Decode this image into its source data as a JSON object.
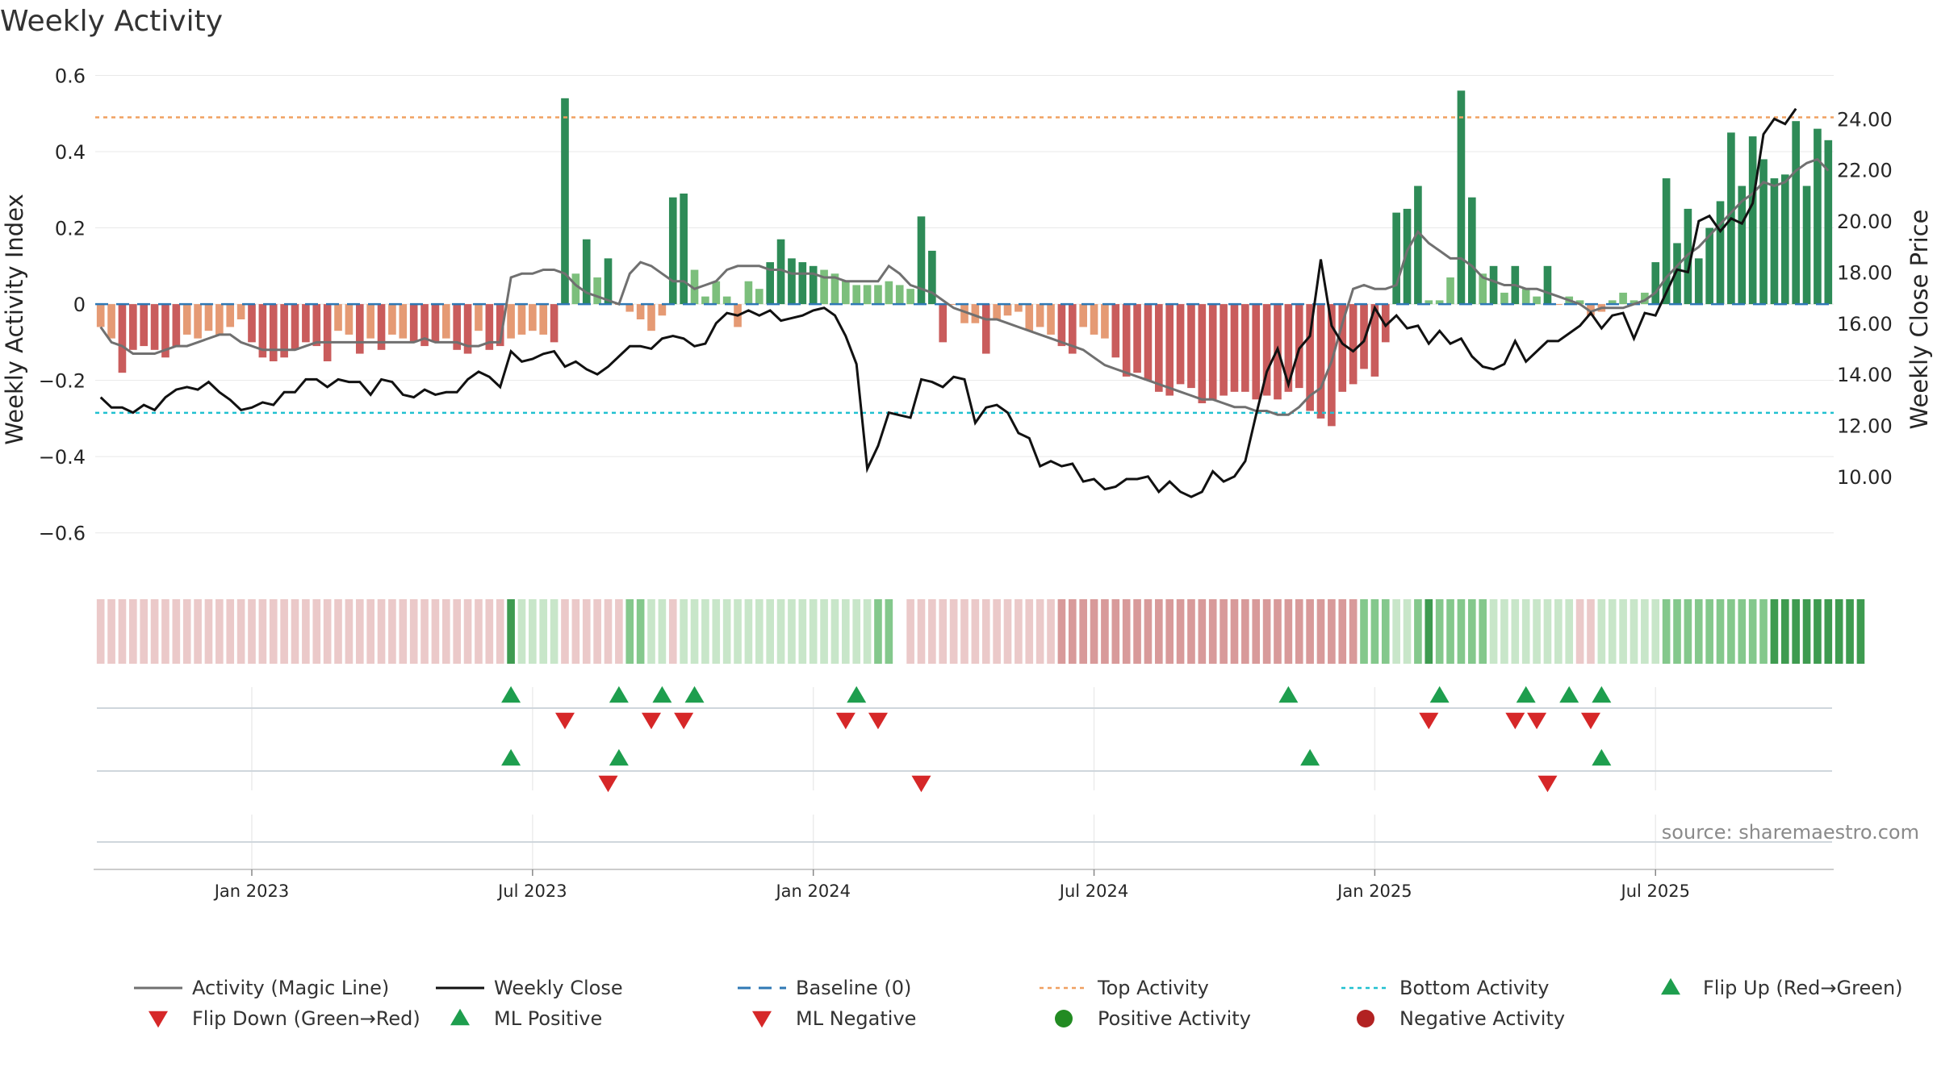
{
  "chart_data": {
    "type": "bar",
    "title": "Weekly Activity",
    "ylabel": "Weekly Activity Index",
    "y2label": "Weekly Close Price",
    "ylim": [
      -0.7,
      0.62
    ],
    "y2lim": [
      6.3,
      26.0
    ],
    "yticks": [
      "0.6",
      "0.4",
      "0.2",
      "0",
      "−0.2",
      "−0.4",
      "−0.6"
    ],
    "y2ticks": [
      "24.00",
      "22.00",
      "20.00",
      "18.00",
      "16.00",
      "14.00",
      "12.00",
      "10.00"
    ],
    "x_tick_labels": [
      "Jan 2023",
      "Jul 2023",
      "Jan 2024",
      "Jul 2024",
      "Jan 2025",
      "Jul 2025"
    ],
    "x_tick_weeks": [
      14.5,
      40.5,
      66.5,
      92.5,
      118.5,
      144.5
    ],
    "top_activity": 0.49,
    "bottom_activity": -0.285,
    "colors": {
      "pos_strong": "#2e8b57",
      "pos_weak": "#7cbf7c",
      "neg_strong": "#c95c5c",
      "neg_weak": "#e59a74",
      "magic_line": "#707070",
      "close_line": "#111111",
      "baseline": "#2f78b5",
      "top_line": "#f0a060",
      "bottom_line": "#20c0d0",
      "marker_up": "#1e9e4e",
      "marker_down": "#d62728",
      "pos_dot": "#228b22",
      "neg_dot": "#b22222"
    },
    "series": [
      {
        "name": "Activity",
        "values": [
          -0.06,
          -0.09,
          -0.18,
          -0.12,
          -0.11,
          -0.12,
          -0.14,
          -0.11,
          -0.08,
          -0.09,
          -0.07,
          -0.08,
          -0.06,
          -0.04,
          -0.1,
          -0.14,
          -0.15,
          -0.14,
          -0.12,
          -0.1,
          -0.11,
          -0.15,
          -0.07,
          -0.08,
          -0.13,
          -0.09,
          -0.12,
          -0.08,
          -0.09,
          -0.1,
          -0.11,
          -0.1,
          -0.09,
          -0.12,
          -0.13,
          -0.07,
          -0.12,
          -0.11,
          -0.09,
          -0.08,
          -0.07,
          -0.08,
          -0.1,
          0.54,
          0.08,
          0.17,
          0.07,
          0.12,
          0,
          -0.02,
          -0.04,
          -0.07,
          -0.03,
          0.28,
          0.29,
          0.09,
          0.02,
          0.06,
          0.02,
          -0.06,
          0.06,
          0.04,
          0.11,
          0.17,
          0.12,
          0.11,
          0.1,
          0.09,
          0.08,
          0.06,
          0.05,
          0.05,
          0.05,
          0.06,
          0.05,
          0.04,
          0.23,
          0.14,
          -0.1,
          0,
          -0.05,
          -0.05,
          -0.13,
          -0.04,
          -0.03,
          -0.02,
          -0.07,
          -0.06,
          -0.08,
          -0.11,
          -0.13,
          -0.06,
          -0.08,
          -0.09,
          -0.14,
          -0.19,
          -0.18,
          -0.2,
          -0.23,
          -0.24,
          -0.21,
          -0.22,
          -0.26,
          -0.25,
          -0.24,
          -0.23,
          -0.23,
          -0.25,
          -0.24,
          -0.25,
          -0.23,
          -0.22,
          -0.28,
          -0.3,
          -0.32,
          -0.23,
          -0.21,
          -0.17,
          -0.19,
          -0.1,
          0.24,
          0.25,
          0.31,
          0.01,
          0.01,
          0.07,
          0.56,
          0.28,
          0.08,
          0.1,
          0.03,
          0.1,
          0.04,
          0.02,
          0.1,
          0,
          0.02,
          0.01,
          -0.03,
          -0.02,
          0.01,
          0.03,
          0.01,
          0.03,
          0.11,
          0.33,
          0.16,
          0.25,
          0.12,
          0.2,
          0.27,
          0.45,
          0.31,
          0.44,
          0.38,
          0.33,
          0.34,
          0.48,
          0.31,
          0.46,
          0.43
        ]
      },
      {
        "name": "Activity (Magic Line)",
        "values": [
          -0.06,
          -0.1,
          -0.11,
          -0.13,
          -0.13,
          -0.13,
          -0.12,
          -0.11,
          -0.11,
          -0.1,
          -0.09,
          -0.08,
          -0.08,
          -0.1,
          -0.11,
          -0.12,
          -0.12,
          -0.12,
          -0.12,
          -0.11,
          -0.1,
          -0.1,
          -0.1,
          -0.1,
          -0.1,
          -0.1,
          -0.1,
          -0.1,
          -0.1,
          -0.1,
          -0.09,
          -0.1,
          -0.1,
          -0.1,
          -0.11,
          -0.11,
          -0.1,
          -0.1,
          0.07,
          0.08,
          0.08,
          0.09,
          0.09,
          0.08,
          0.05,
          0.03,
          0.02,
          0.01,
          0,
          0.08,
          0.11,
          0.1,
          0.08,
          0.06,
          0.06,
          0.04,
          0.05,
          0.06,
          0.09,
          0.1,
          0.1,
          0.1,
          0.09,
          0.09,
          0.08,
          0.08,
          0.08,
          0.07,
          0.07,
          0.06,
          0.06,
          0.06,
          0.06,
          0.1,
          0.08,
          0.05,
          0.04,
          0.03,
          0.01,
          -0.01,
          -0.02,
          -0.03,
          -0.04,
          -0.04,
          -0.05,
          -0.06,
          -0.07,
          -0.08,
          -0.09,
          -0.1,
          -0.11,
          -0.12,
          -0.14,
          -0.16,
          -0.17,
          -0.18,
          -0.19,
          -0.2,
          -0.21,
          -0.22,
          -0.23,
          -0.24,
          -0.25,
          -0.25,
          -0.26,
          -0.27,
          -0.27,
          -0.28,
          -0.28,
          -0.29,
          -0.29,
          -0.27,
          -0.24,
          -0.22,
          -0.15,
          -0.05,
          0.04,
          0.05,
          0.04,
          0.04,
          0.05,
          0.14,
          0.19,
          0.16,
          0.14,
          0.12,
          0.12,
          0.1,
          0.07,
          0.06,
          0.05,
          0.05,
          0.04,
          0.04,
          0.03,
          0.02,
          0.01,
          0,
          -0.02,
          -0.01,
          -0.01,
          -0.01,
          0,
          0.01,
          0.03,
          0.07,
          0.1,
          0.13,
          0.15,
          0.18,
          0.21,
          0.24,
          0.27,
          0.29,
          0.32,
          0.31,
          0.32,
          0.35,
          0.37,
          0.38,
          0.35
        ]
      },
      {
        "name": "Weekly Close",
        "values": [
          13.1,
          12.7,
          12.7,
          12.5,
          12.8,
          12.6,
          13.1,
          13.4,
          13.5,
          13.4,
          13.7,
          13.3,
          13.0,
          12.6,
          12.7,
          12.9,
          12.8,
          13.3,
          13.3,
          13.8,
          13.8,
          13.5,
          13.8,
          13.7,
          13.7,
          13.2,
          13.8,
          13.7,
          13.2,
          13.1,
          13.4,
          13.2,
          13.3,
          13.3,
          13.8,
          14.1,
          13.9,
          13.5,
          14.9,
          14.5,
          14.6,
          14.8,
          14.9,
          14.3,
          14.5,
          14.2,
          14.0,
          14.3,
          14.7,
          15.1,
          15.1,
          15.0,
          15.4,
          15.5,
          15.4,
          15.1,
          15.2,
          16.0,
          16.4,
          16.3,
          16.5,
          16.3,
          16.5,
          16.1,
          16.2,
          16.3,
          16.5,
          16.6,
          16.3,
          15.5,
          14.4,
          10.3,
          11.2,
          12.5,
          12.4,
          12.3,
          13.8,
          13.7,
          13.5,
          13.9,
          13.8,
          12.1,
          12.7,
          12.8,
          12.5,
          11.7,
          11.5,
          10.4,
          10.6,
          10.4,
          10.5,
          9.8,
          9.9,
          9.5,
          9.6,
          9.9,
          9.9,
          10.0,
          9.4,
          9.8,
          9.4,
          9.2,
          9.4,
          10.2,
          9.8,
          10.0,
          10.6,
          12.4,
          14.1,
          15.0,
          13.6,
          15.0,
          15.5,
          18.5,
          15.9,
          15.2,
          14.9,
          15.3,
          16.6,
          15.9,
          16.3,
          15.8,
          15.9,
          15.2,
          15.7,
          15.2,
          15.4,
          14.7,
          14.3,
          14.2,
          14.4,
          15.3,
          14.5,
          14.9,
          15.3,
          15.3,
          15.6,
          15.9,
          16.4,
          15.8,
          16.3,
          16.4,
          15.4,
          16.4,
          16.3,
          17.2,
          18.1,
          18.0,
          20.0,
          20.2,
          19.6,
          20.1,
          19.9,
          20.7,
          23.4,
          24.0,
          23.8,
          24.4
        ]
      }
    ],
    "heat_strip_levels": [
      -1,
      -1,
      -1,
      -1,
      -1,
      -1,
      -1,
      -1,
      -1,
      -1,
      -1,
      -1,
      -1,
      -1,
      -1,
      -1,
      -1,
      -1,
      -1,
      -1,
      -1,
      -1,
      -1,
      -1,
      -1,
      -1,
      -1,
      -1,
      -1,
      -1,
      -1,
      -1,
      -1,
      -1,
      -1,
      -1,
      -1,
      -1,
      3,
      1,
      1,
      1,
      1,
      -1,
      -1,
      -1,
      -1,
      -1,
      -1,
      2,
      2,
      1,
      1,
      -1,
      1,
      1,
      1,
      1,
      1,
      1,
      1,
      1,
      1,
      1,
      1,
      1,
      1,
      1,
      1,
      1,
      1,
      1,
      2,
      2,
      0,
      -1,
      -1,
      -1,
      -1,
      -1,
      -1,
      -1,
      -1,
      -1,
      -1,
      -1,
      -1,
      -1,
      -1,
      -2,
      -2,
      -2,
      -2,
      -2,
      -2,
      -2,
      -2,
      -2,
      -2,
      -2,
      -2,
      -2,
      -2,
      -2,
      -2,
      -2,
      -2,
      -2,
      -2,
      -2,
      -2,
      -2,
      -2,
      -2,
      -2,
      -2,
      -2,
      2,
      2,
      2,
      1,
      1,
      2,
      3,
      2,
      2,
      2,
      2,
      2,
      1,
      1,
      1,
      1,
      1,
      1,
      1,
      1,
      -1,
      -1,
      1,
      1,
      1,
      1,
      1,
      1,
      2,
      2,
      2,
      2,
      2,
      2,
      2,
      2,
      2,
      2,
      3,
      3,
      3,
      3,
      3,
      3,
      3,
      3,
      3
    ],
    "flip_up_weeks": [
      38,
      48,
      52,
      55,
      70,
      110,
      124,
      132,
      136,
      139
    ],
    "flip_down_weeks": [
      43,
      51,
      54,
      69,
      72,
      123,
      131,
      133,
      138
    ],
    "ml_positive_weeks": [
      38,
      48,
      112,
      139
    ],
    "ml_negative_weeks": [
      47,
      76,
      134
    ],
    "source": "source: sharemaestro.com",
    "legend": [
      "Activity (Magic Line)",
      "Weekly Close",
      "Baseline (0)",
      "Top Activity",
      "Bottom Activity",
      "Flip Up (Red→Green)",
      "Flip Down (Green→Red)",
      "ML Positive",
      "ML Negative",
      "Positive Activity",
      "Negative Activity"
    ]
  }
}
